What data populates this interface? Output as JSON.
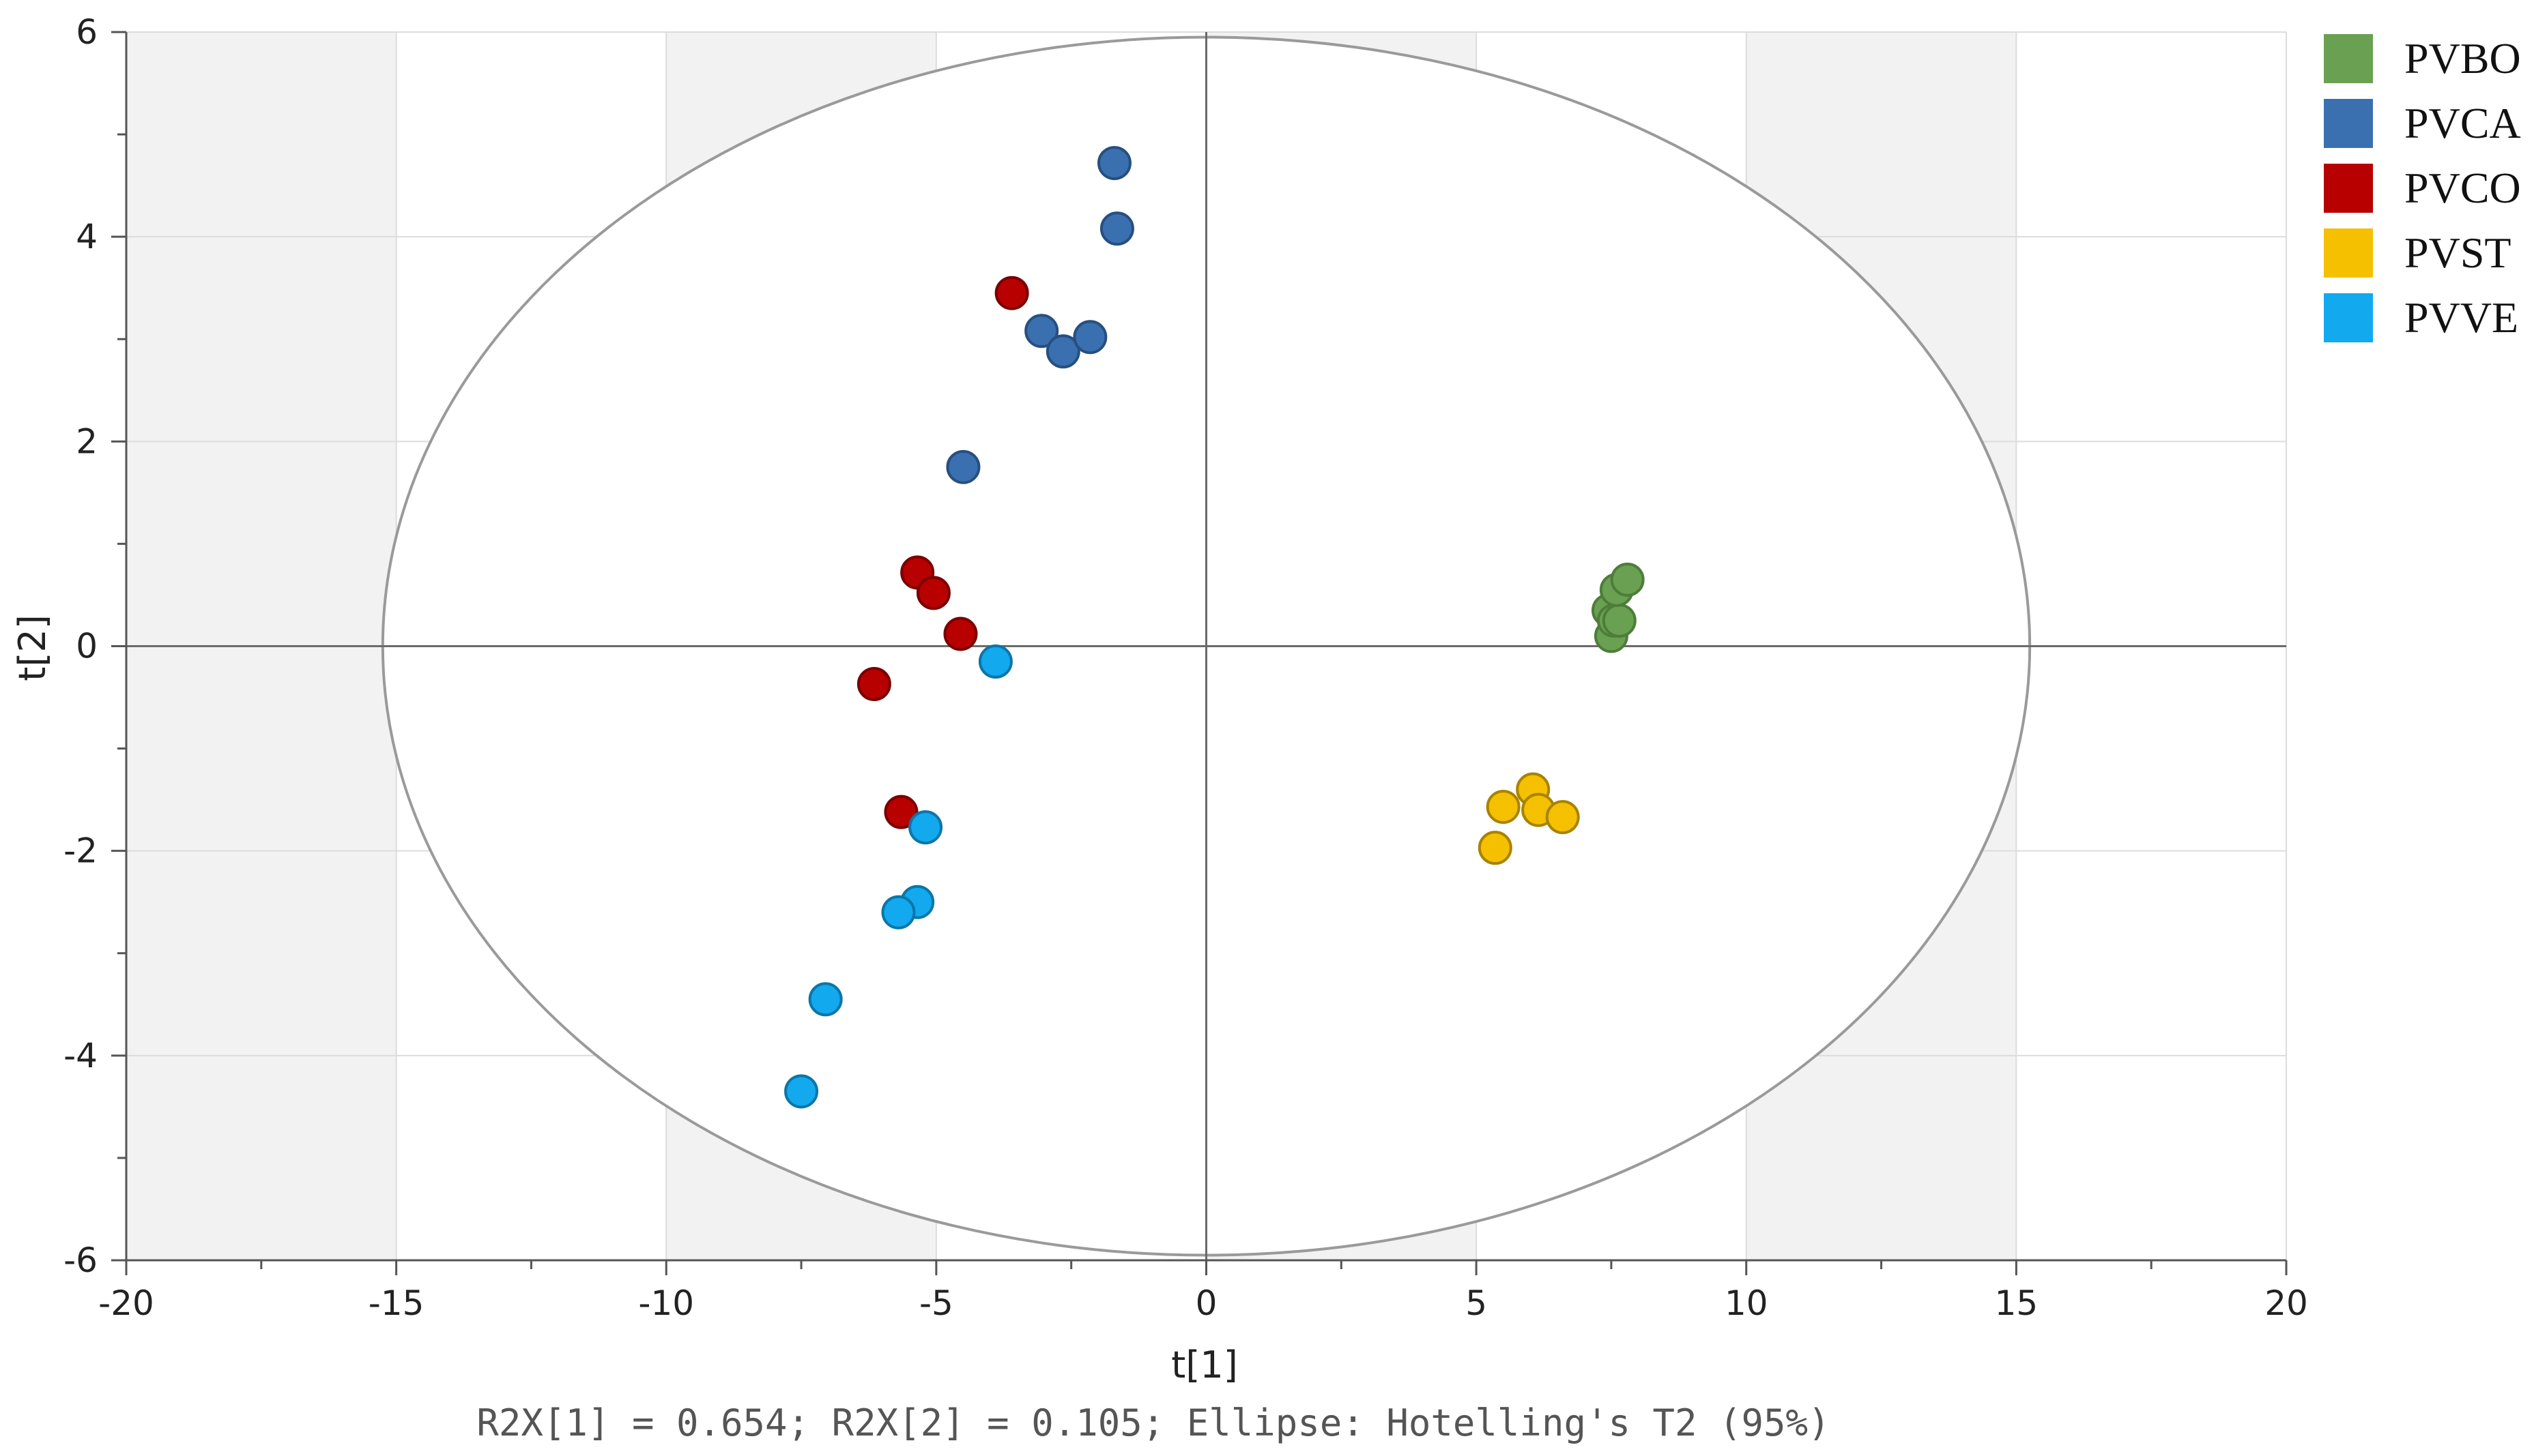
{
  "chart_data": {
    "type": "scatter",
    "title": "",
    "xlabel": "t[1]",
    "ylabel": "t[2]",
    "xlim": [
      -20,
      20
    ],
    "ylim": [
      -6,
      6
    ],
    "x_ticks": [
      -20,
      -15,
      -10,
      -5,
      0,
      5,
      10,
      15,
      20
    ],
    "y_ticks": [
      -6,
      -4,
      -2,
      0,
      2,
      4,
      6
    ],
    "x_tick_labels": [
      "-20",
      "-15",
      "-10",
      "-5",
      "0",
      "5",
      "10",
      "15",
      "20"
    ],
    "y_tick_labels": [
      "-6",
      "-4",
      "-2",
      "0",
      "2",
      "4",
      "6"
    ],
    "grid": true,
    "legend_position": "top-right",
    "ellipse": {
      "label": "Hotelling's T2 (95%)",
      "rx": 15.25,
      "ry": 5.95,
      "cx": 0,
      "cy": 0
    },
    "footnote": "R2X[1] = 0.654; R2X[2] = 0.105; Ellipse: Hotelling's T2 (95%)",
    "series": [
      {
        "name": "PVBO",
        "color": "#6aa051",
        "stroke": "#4e7d3a",
        "points": [
          [
            7.5,
            0.1
          ],
          [
            7.45,
            0.35
          ],
          [
            7.55,
            0.25
          ],
          [
            7.65,
            0.25
          ],
          [
            7.6,
            0.55
          ],
          [
            7.8,
            0.65
          ]
        ]
      },
      {
        "name": "PVCA",
        "color": "#3a70b0",
        "stroke": "#274f80",
        "points": [
          [
            -1.7,
            4.72
          ],
          [
            -1.65,
            4.08
          ],
          [
            -3.05,
            3.08
          ],
          [
            -2.65,
            2.88
          ],
          [
            -2.15,
            3.02
          ],
          [
            -4.5,
            1.75
          ]
        ]
      },
      {
        "name": "PVCO",
        "color": "#b80000",
        "stroke": "#7a0000",
        "points": [
          [
            -3.6,
            3.45
          ],
          [
            -5.35,
            0.72
          ],
          [
            -5.05,
            0.52
          ],
          [
            -4.55,
            0.12
          ],
          [
            -6.15,
            -0.37
          ],
          [
            -5.65,
            -1.62
          ]
        ]
      },
      {
        "name": "PVST",
        "color": "#f5c000",
        "stroke": "#a88300",
        "points": [
          [
            5.5,
            -1.57
          ],
          [
            6.05,
            -1.4
          ],
          [
            6.15,
            -1.6
          ],
          [
            6.6,
            -1.67
          ],
          [
            5.35,
            -1.97
          ]
        ]
      },
      {
        "name": "PVVE",
        "color": "#12a9ee",
        "stroke": "#0b76a8",
        "points": [
          [
            -3.9,
            -0.15
          ],
          [
            -5.2,
            -1.77
          ],
          [
            -5.35,
            -2.5
          ],
          [
            -5.7,
            -2.6
          ],
          [
            -7.05,
            -3.45
          ],
          [
            -7.5,
            -4.35
          ]
        ]
      }
    ]
  }
}
